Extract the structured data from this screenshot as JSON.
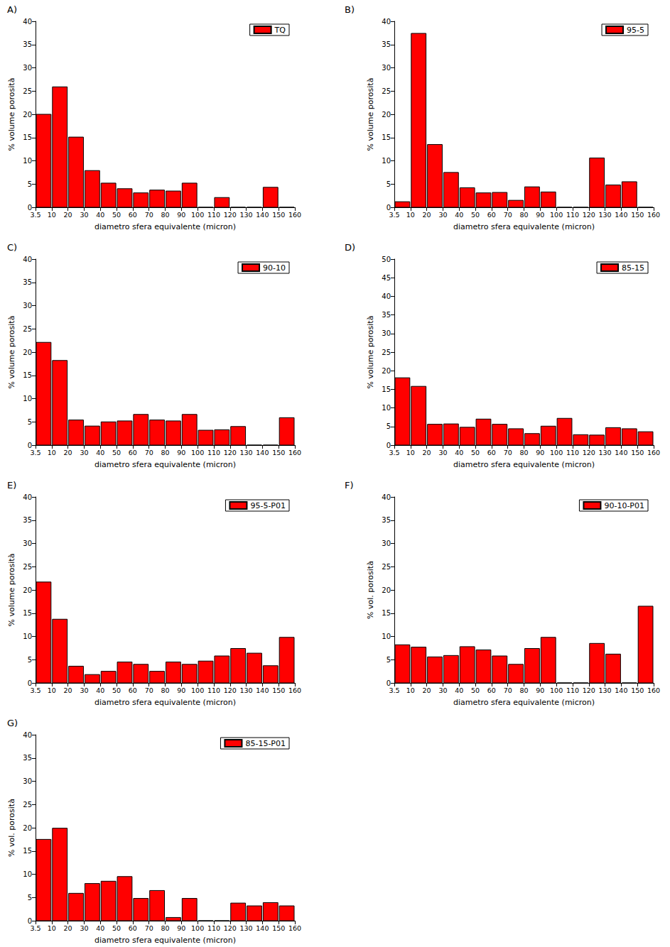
{
  "chart_data": [
    {
      "type": "histogram",
      "title": "A)",
      "x_label": "diametro sfera equivalente (micron)",
      "y_label": "% volume porosità",
      "bins": [
        3.5,
        10,
        20,
        30,
        40,
        50,
        60,
        70,
        80,
        90,
        100,
        110,
        120,
        130,
        140,
        150,
        160
      ],
      "xlim": [
        3.5,
        160
      ],
      "xticks": [
        3.5,
        10,
        20,
        30,
        40,
        50,
        60,
        70,
        80,
        90,
        100,
        110,
        120,
        130,
        140,
        150,
        160
      ],
      "ylim": [
        0,
        40
      ],
      "yticks": [
        0,
        5,
        10,
        15,
        20,
        25,
        30,
        35,
        40
      ],
      "grid": false,
      "legend": "upper right",
      "series": [
        {
          "name": "TQ",
          "color": "#ff0000",
          "values": [
            20,
            25.9,
            15.1,
            7.9,
            5.2,
            4.0,
            3.1,
            3.7,
            3.5,
            5.2,
            0,
            2.1,
            0,
            0,
            4.3,
            0
          ]
        }
      ]
    },
    {
      "type": "histogram",
      "title": "B)",
      "x_label": "diametro sfera equivalente (micron)",
      "y_label": "% volume porosità",
      "bins": [
        3.5,
        10,
        20,
        30,
        40,
        50,
        60,
        70,
        80,
        90,
        100,
        110,
        120,
        130,
        140,
        150,
        160
      ],
      "xlim": [
        3.5,
        160
      ],
      "xticks": [
        3.5,
        10,
        20,
        30,
        40,
        50,
        60,
        70,
        80,
        90,
        100,
        110,
        120,
        130,
        140,
        150,
        160
      ],
      "ylim": [
        0,
        40
      ],
      "yticks": [
        0,
        5,
        10,
        15,
        20,
        25,
        30,
        35,
        40
      ],
      "grid": false,
      "legend": "upper right",
      "series": [
        {
          "name": "95-5",
          "color": "#ff0000",
          "values": [
            1.2,
            37.4,
            13.5,
            7.5,
            4.2,
            3.1,
            3.2,
            1.5,
            4.4,
            3.3,
            0,
            0,
            10.6,
            4.8,
            5.5,
            0
          ]
        }
      ]
    },
    {
      "type": "histogram",
      "title": "C)",
      "x_label": "diametro sfera equivalente (micron)",
      "y_label": "% volume porosità",
      "bins": [
        3.5,
        10,
        20,
        30,
        40,
        50,
        60,
        70,
        80,
        90,
        100,
        110,
        120,
        130,
        140,
        150,
        160
      ],
      "xlim": [
        3.5,
        160
      ],
      "xticks": [
        3.5,
        10,
        20,
        30,
        40,
        50,
        60,
        70,
        80,
        90,
        100,
        110,
        120,
        130,
        140,
        150,
        160
      ],
      "ylim": [
        0,
        40
      ],
      "yticks": [
        0,
        5,
        10,
        15,
        20,
        25,
        30,
        35,
        40
      ],
      "grid": false,
      "legend": "upper right",
      "series": [
        {
          "name": "90-10",
          "color": "#ff0000",
          "values": [
            22.1,
            18.2,
            5.4,
            4.1,
            5.0,
            5.2,
            6.6,
            5.4,
            5.2,
            6.6,
            3.2,
            3.3,
            4.0,
            0,
            0,
            5.9
          ]
        }
      ]
    },
    {
      "type": "histogram",
      "title": "D)",
      "x_label": "diametro sfera equivalente (micron)",
      "y_label": "% volume porosità",
      "bins": [
        3.5,
        10,
        20,
        30,
        40,
        50,
        60,
        70,
        80,
        90,
        100,
        110,
        120,
        130,
        140,
        150,
        160
      ],
      "xlim": [
        3.5,
        160
      ],
      "xticks": [
        3.5,
        10,
        20,
        30,
        40,
        50,
        60,
        70,
        80,
        90,
        100,
        110,
        120,
        130,
        140,
        150,
        160
      ],
      "ylim": [
        0,
        50
      ],
      "yticks": [
        0,
        5,
        10,
        15,
        20,
        25,
        30,
        35,
        40,
        45,
        50
      ],
      "grid": false,
      "legend": "upper right",
      "series": [
        {
          "name": "85-15",
          "color": "#ff0000",
          "values": [
            18.1,
            15.8,
            5.6,
            5.7,
            4.8,
            7.0,
            5.6,
            4.4,
            3.1,
            5.1,
            7.2,
            2.8,
            2.7,
            4.7,
            4.4,
            3.6
          ]
        }
      ]
    },
    {
      "type": "histogram",
      "title": "E)",
      "x_label": "diametro sfera equivalente (micron)",
      "y_label": "% volume porosità",
      "bins": [
        3.5,
        10,
        20,
        30,
        40,
        50,
        60,
        70,
        80,
        90,
        100,
        110,
        120,
        130,
        140,
        150,
        160
      ],
      "xlim": [
        3.5,
        160
      ],
      "xticks": [
        3.5,
        10,
        20,
        30,
        40,
        50,
        60,
        70,
        80,
        90,
        100,
        110,
        120,
        130,
        140,
        150,
        160
      ],
      "ylim": [
        0,
        40
      ],
      "yticks": [
        0,
        5,
        10,
        15,
        20,
        25,
        30,
        35,
        40
      ],
      "grid": false,
      "legend": "upper right",
      "series": [
        {
          "name": "95-5-P01",
          "color": "#ff0000",
          "values": [
            21.7,
            13.7,
            3.6,
            1.8,
            2.5,
            4.5,
            4.0,
            2.5,
            4.5,
            4.0,
            4.7,
            5.8,
            7.4,
            6.4,
            3.7,
            9.8
          ]
        }
      ]
    },
    {
      "type": "histogram",
      "title": "F)",
      "x_label": "diametro sfera equivalente (micron)",
      "y_label": "% vol. porosità",
      "bins": [
        3.5,
        10,
        20,
        30,
        40,
        50,
        60,
        70,
        80,
        90,
        100,
        110,
        120,
        130,
        140,
        150,
        160
      ],
      "xlim": [
        3.5,
        160
      ],
      "xticks": [
        3.5,
        10,
        20,
        30,
        40,
        50,
        60,
        70,
        80,
        90,
        100,
        110,
        120,
        130,
        140,
        150,
        160
      ],
      "ylim": [
        0,
        40
      ],
      "yticks": [
        0,
        5,
        10,
        15,
        20,
        25,
        30,
        35,
        40
      ],
      "grid": false,
      "legend": "upper right",
      "series": [
        {
          "name": "90-10-P01",
          "color": "#ff0000",
          "values": [
            8.2,
            7.7,
            5.6,
            5.9,
            7.8,
            7.1,
            5.8,
            4.0,
            7.4,
            9.8,
            0,
            0,
            8.5,
            6.2,
            0,
            16.5
          ]
        }
      ]
    },
    {
      "type": "histogram",
      "title": "G)",
      "x_label": "diametro sfera equivalente (micron)",
      "y_label": "% vol. porosità",
      "bins": [
        3.5,
        10,
        20,
        30,
        40,
        50,
        60,
        70,
        80,
        90,
        100,
        110,
        120,
        130,
        140,
        150,
        160
      ],
      "xlim": [
        3.5,
        160
      ],
      "xticks": [
        3.5,
        10,
        20,
        30,
        40,
        50,
        60,
        70,
        80,
        90,
        100,
        110,
        120,
        130,
        140,
        150,
        160
      ],
      "ylim": [
        0,
        40
      ],
      "yticks": [
        0,
        5,
        10,
        15,
        20,
        25,
        30,
        35,
        40
      ],
      "grid": false,
      "legend": "upper right",
      "series": [
        {
          "name": "85-15-P01",
          "color": "#ff0000",
          "values": [
            17.5,
            19.9,
            5.9,
            8.0,
            8.5,
            9.5,
            4.8,
            6.5,
            0.7,
            4.8,
            0,
            0,
            3.8,
            3.2,
            3.9,
            3.2
          ]
        }
      ]
    }
  ]
}
